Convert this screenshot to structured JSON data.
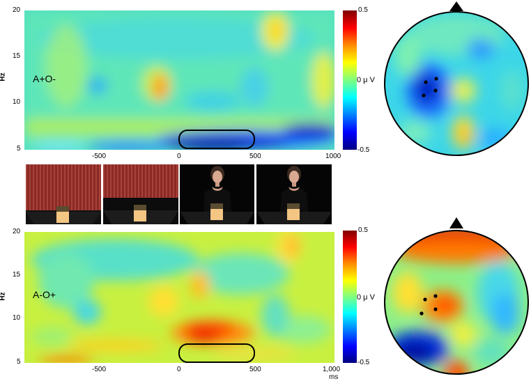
{
  "axes": {
    "y_label": "Hz",
    "x_label": "ms",
    "y_ticks": [
      "20",
      "15",
      "10",
      "5"
    ],
    "x_ticks_top": [
      "-500",
      "0",
      "500",
      "1000"
    ],
    "x_ticks_bottom": [
      "-500",
      "0",
      "500",
      "1,000"
    ]
  },
  "panels": [
    {
      "condition": "A+O-"
    },
    {
      "condition": "A-O+"
    }
  ],
  "colorbar": {
    "max": "0.5",
    "mid": "0 μ V",
    "min": "-0.5",
    "colors": [
      "#7f0000",
      "#ff0000",
      "#ff8c00",
      "#ffff00",
      "#80ff80",
      "#00ffff",
      "#0080ff",
      "#0000ff",
      "#000080"
    ]
  },
  "stimulus_frames": [
    {
      "scene": "curtain-closed"
    },
    {
      "scene": "curtain-rising"
    },
    {
      "scene": "actor-visible"
    },
    {
      "scene": "actor-visible"
    }
  ],
  "icons": [
    "nose-marker-icon",
    "electrode-dot-icon"
  ]
}
